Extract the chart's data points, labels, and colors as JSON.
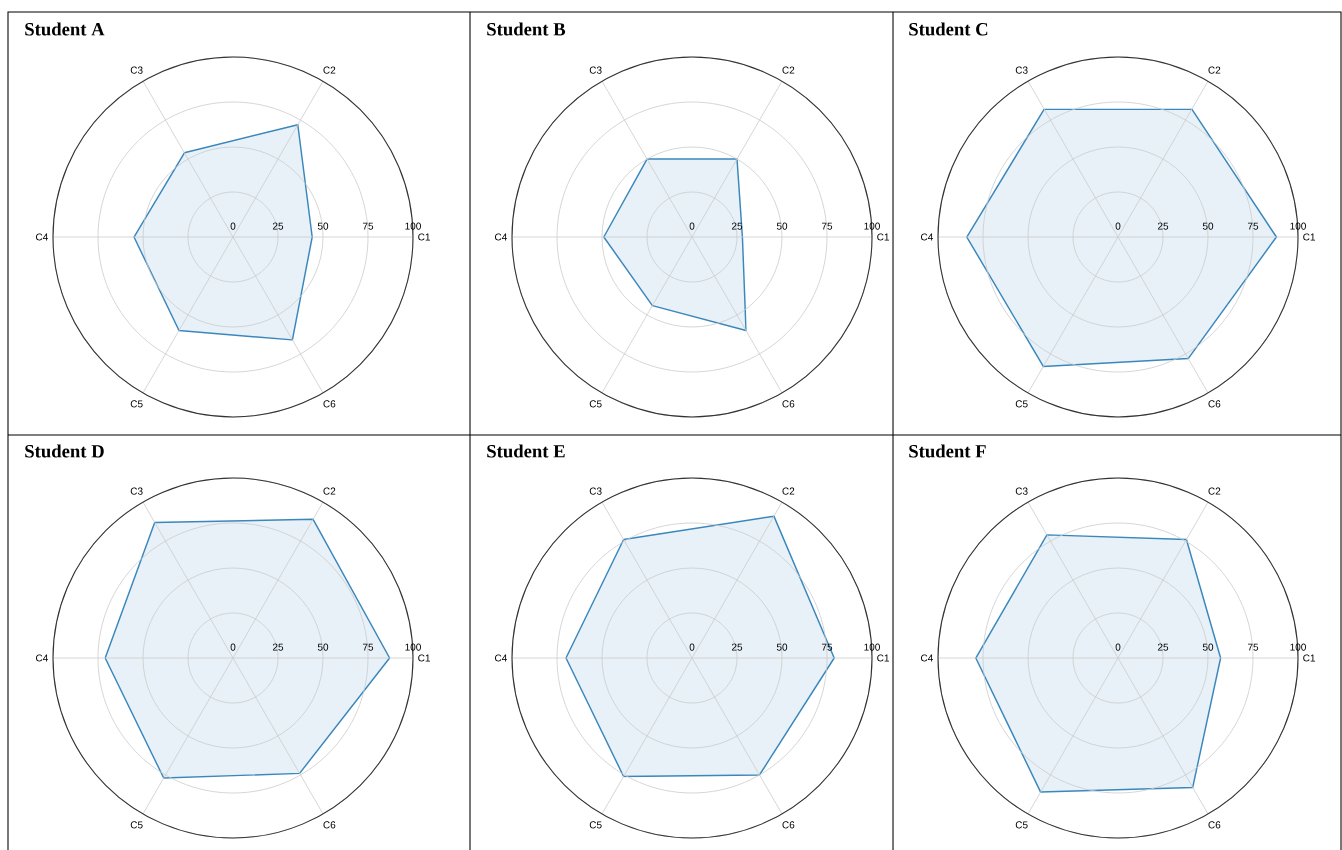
{
  "chart_data": [
    {
      "type": "radar",
      "title": "Student A",
      "categories": [
        "C2",
        "C1",
        "C6",
        "C5",
        "C4",
        "C3"
      ],
      "series": [
        {
          "color": "#3a87bd",
          "values": [
            72,
            44,
            66,
            60,
            55,
            54
          ]
        }
      ],
      "ylim": [
        0,
        100
      ],
      "yticks": [
        0,
        25,
        50,
        75,
        100
      ],
      "grid": true
    },
    {
      "type": "radar",
      "title": "Student B",
      "categories": [
        "C2",
        "C1",
        "C6",
        "C5",
        "C4",
        "C3"
      ],
      "series": [
        {
          "color": "#3a87bd",
          "values": [
            50,
            28,
            60,
            44,
            49,
            50
          ]
        }
      ],
      "ylim": [
        0,
        100
      ],
      "yticks": [
        0,
        25,
        50,
        75,
        100
      ],
      "grid": true
    },
    {
      "type": "radar",
      "title": "Student C",
      "categories": [
        "C2",
        "C1",
        "C6",
        "C5",
        "C4",
        "C3"
      ],
      "series": [
        {
          "color": "#3a87bd",
          "values": [
            82,
            88,
            78,
            83,
            84,
            82
          ]
        }
      ],
      "ylim": [
        0,
        100
      ],
      "yticks": [
        0,
        25,
        50,
        75,
        100
      ],
      "grid": true
    },
    {
      "type": "radar",
      "title": "Student D",
      "categories": [
        "C2",
        "C1",
        "C6",
        "C5",
        "C4",
        "C3"
      ],
      "series": [
        {
          "color": "#3a87bd",
          "values": [
            89,
            87,
            74,
            77,
            71,
            87
          ]
        }
      ],
      "ylim": [
        0,
        100
      ],
      "yticks": [
        0,
        25,
        50,
        75,
        100
      ],
      "grid": true
    },
    {
      "type": "radar",
      "title": "Student E",
      "categories": [
        "C2",
        "C1",
        "C6",
        "C5",
        "C4",
        "C3"
      ],
      "series": [
        {
          "color": "#3a87bd",
          "values": [
            91,
            79,
            75,
            76,
            70,
            76
          ]
        }
      ],
      "ylim": [
        0,
        100
      ],
      "yticks": [
        0,
        25,
        50,
        75,
        100
      ],
      "grid": true
    },
    {
      "type": "radar",
      "title": "Student F",
      "categories": [
        "C2",
        "C1",
        "C6",
        "C5",
        "C4",
        "C3"
      ],
      "series": [
        {
          "color": "#3a87bd",
          "values": [
            76,
            57,
            83,
            86,
            79,
            79
          ]
        }
      ],
      "ylim": [
        0,
        100
      ],
      "yticks": [
        0,
        25,
        50,
        75,
        100
      ],
      "grid": true
    }
  ]
}
